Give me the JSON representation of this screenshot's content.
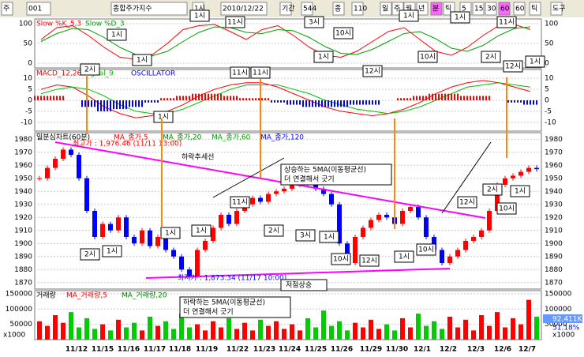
{
  "toolbar": {
    "items": [
      "주",
      "001",
      "종합주가지수",
      "1시",
      "2010/12/22",
      "기간",
      "544",
      "종",
      "110",
      "일",
      "주",
      "월",
      "년",
      "분",
      "틱",
      "5",
      "15",
      "30",
      "60",
      "60",
      "틱",
      "도구"
    ]
  },
  "stochastic": {
    "ylim": [
      -12,
      112
    ],
    "yticks": [
      100,
      50,
      0
    ],
    "series": [
      {
        "name": "Slow %K_5,3",
        "color": "#ff0000",
        "values": [
          60,
          90,
          95,
          70,
          40,
          15,
          10,
          20,
          50,
          85,
          95,
          98,
          80,
          60,
          85,
          95,
          70,
          40,
          20,
          15,
          30,
          55,
          80,
          90,
          60,
          30,
          20,
          40,
          70,
          95,
          98,
          85
        ]
      },
      {
        "name": "Slow %D_3",
        "color": "#00a000",
        "values": [
          55,
          75,
          88,
          85,
          65,
          40,
          22,
          18,
          30,
          55,
          78,
          92,
          90,
          78,
          75,
          85,
          82,
          65,
          42,
          25,
          22,
          35,
          55,
          75,
          80,
          62,
          38,
          30,
          45,
          70,
          88,
          92
        ]
      }
    ]
  },
  "macd": {
    "ylim": [
      -14,
      14
    ],
    "yticks": [
      10,
      5,
      0,
      -5,
      -10
    ],
    "series": [
      {
        "name": "MACD_12,26",
        "color": "#ff0000",
        "values": [
          5,
          7,
          6,
          2,
          -3,
          -6,
          -8,
          -7,
          -5,
          -2,
          2,
          5,
          7,
          8,
          8,
          6,
          3,
          0,
          -3,
          -5,
          -6,
          -7,
          -6,
          -4,
          -1,
          3,
          6,
          8,
          9,
          8,
          6,
          4
        ]
      },
      {
        "name": "Signal_9",
        "color": "#00c000",
        "values": [
          3,
          5,
          6,
          5,
          2,
          -2,
          -5,
          -6,
          -6,
          -4,
          -1,
          2,
          5,
          7,
          7,
          7,
          5,
          3,
          0,
          -2,
          -4,
          -5,
          -6,
          -5,
          -3,
          0,
          3,
          6,
          7,
          8,
          7,
          6
        ]
      },
      {
        "name": "OSCILLATOR",
        "color": "#0000ff",
        "values": [
          2,
          2,
          0,
          -3,
          -5,
          -4,
          -3,
          -1,
          1,
          2,
          3,
          3,
          2,
          1,
          1,
          -1,
          -2,
          -3,
          -3,
          -3,
          -2,
          -2,
          0,
          1,
          2,
          3,
          3,
          2,
          2,
          0,
          -1,
          -2
        ]
      }
    ]
  },
  "price": {
    "title": "일분심차트(60분)",
    "legend": [
      "MA_종가,5",
      "MA_종가,20",
      "MA_종가,60",
      "MA_종가,120"
    ],
    "ylim": [
      1865,
      1985
    ],
    "yticks": [
      1980,
      1970,
      1960,
      1950,
      1940,
      1930,
      1920,
      1910,
      1900,
      1890,
      1880,
      1870
    ],
    "closes": [
      1950,
      1958,
      1965,
      1972,
      1968,
      1950,
      1925,
      1905,
      1915,
      1910,
      1920,
      1905,
      1900,
      1910,
      1898,
      1905,
      1895,
      1890,
      1880,
      1875,
      1895,
      1902,
      1912,
      1922,
      1915,
      1925,
      1930,
      1935,
      1932,
      1938,
      1940,
      1942,
      1945,
      1950,
      1946,
      1942,
      1938,
      1930,
      1900,
      1885,
      1905,
      1912,
      1918,
      1922,
      1920,
      1915,
      1925,
      1928,
      1920,
      1905,
      1895,
      1885,
      1890,
      1895,
      1902,
      1905,
      1910,
      1925,
      1945,
      1950,
      1952,
      1955,
      1958,
      1957
    ],
    "high_note": "최고가 : 1,976.46 (11/11 13:00)",
    "low_note": "최저가 : 1,873.34 (11/17 10:00)",
    "notes": [
      "하락추세선",
      "상승하는 5MA(이동평균선)",
      "더 연결해서 긋기",
      "저점상승"
    ]
  },
  "volume": {
    "title": "거래량",
    "legend": [
      "MA_거래량,5",
      "MA_거래량,20"
    ],
    "ylim": [
      0,
      160000
    ],
    "yticks": [
      150000,
      100000,
      50000
    ],
    "values": [
      60000,
      45000,
      80000,
      55000,
      90000,
      40000,
      70000,
      35000,
      50000,
      30000,
      65000,
      40000,
      55000,
      30000,
      75000,
      45000,
      60000,
      35000,
      85000,
      40000,
      50000,
      30000,
      60000,
      40000,
      70000,
      35000,
      55000,
      30000,
      65000,
      45000,
      60000,
      35000,
      50000,
      30000,
      70000,
      40000,
      95000,
      45000,
      60000,
      30000,
      55000,
      40000,
      65000,
      35000,
      50000,
      30000,
      70000,
      40000,
      85000,
      45000,
      60000,
      35000,
      75000,
      40000,
      65000,
      30000,
      80000,
      45000,
      90000,
      40000,
      70000,
      50000,
      130000,
      75000
    ],
    "notes": [
      "하락하는 5MA(이동평균선)",
      "더 연결해서 긋기"
    ],
    "unit": "x1000",
    "last": "92,411K",
    "ratio": "51.18%"
  },
  "dates": [
    "11/12",
    "11/15",
    "11/16",
    "11/17",
    "11/18",
    "11/19",
    "11/22",
    "11/23",
    "11/24",
    "11/25",
    "11/26",
    "11/29",
    "11/30",
    "12/1",
    "12/2",
    "12/3",
    "12/6",
    "12/7"
  ],
  "annotations": [
    "1시",
    "1시",
    "11시",
    "3시",
    "10시",
    "1시",
    "1시",
    "11시",
    "2시",
    "1시",
    "12시",
    "10시",
    "2시",
    "1시",
    "11시",
    "1시",
    "11시",
    "12시",
    "1시",
    "2시",
    "1시",
    "11시",
    "1시",
    "1시",
    "2시",
    "3시",
    "1시",
    "10시",
    "12시",
    "1시",
    "10시",
    "12시",
    "2시",
    "1시",
    "10시"
  ]
}
